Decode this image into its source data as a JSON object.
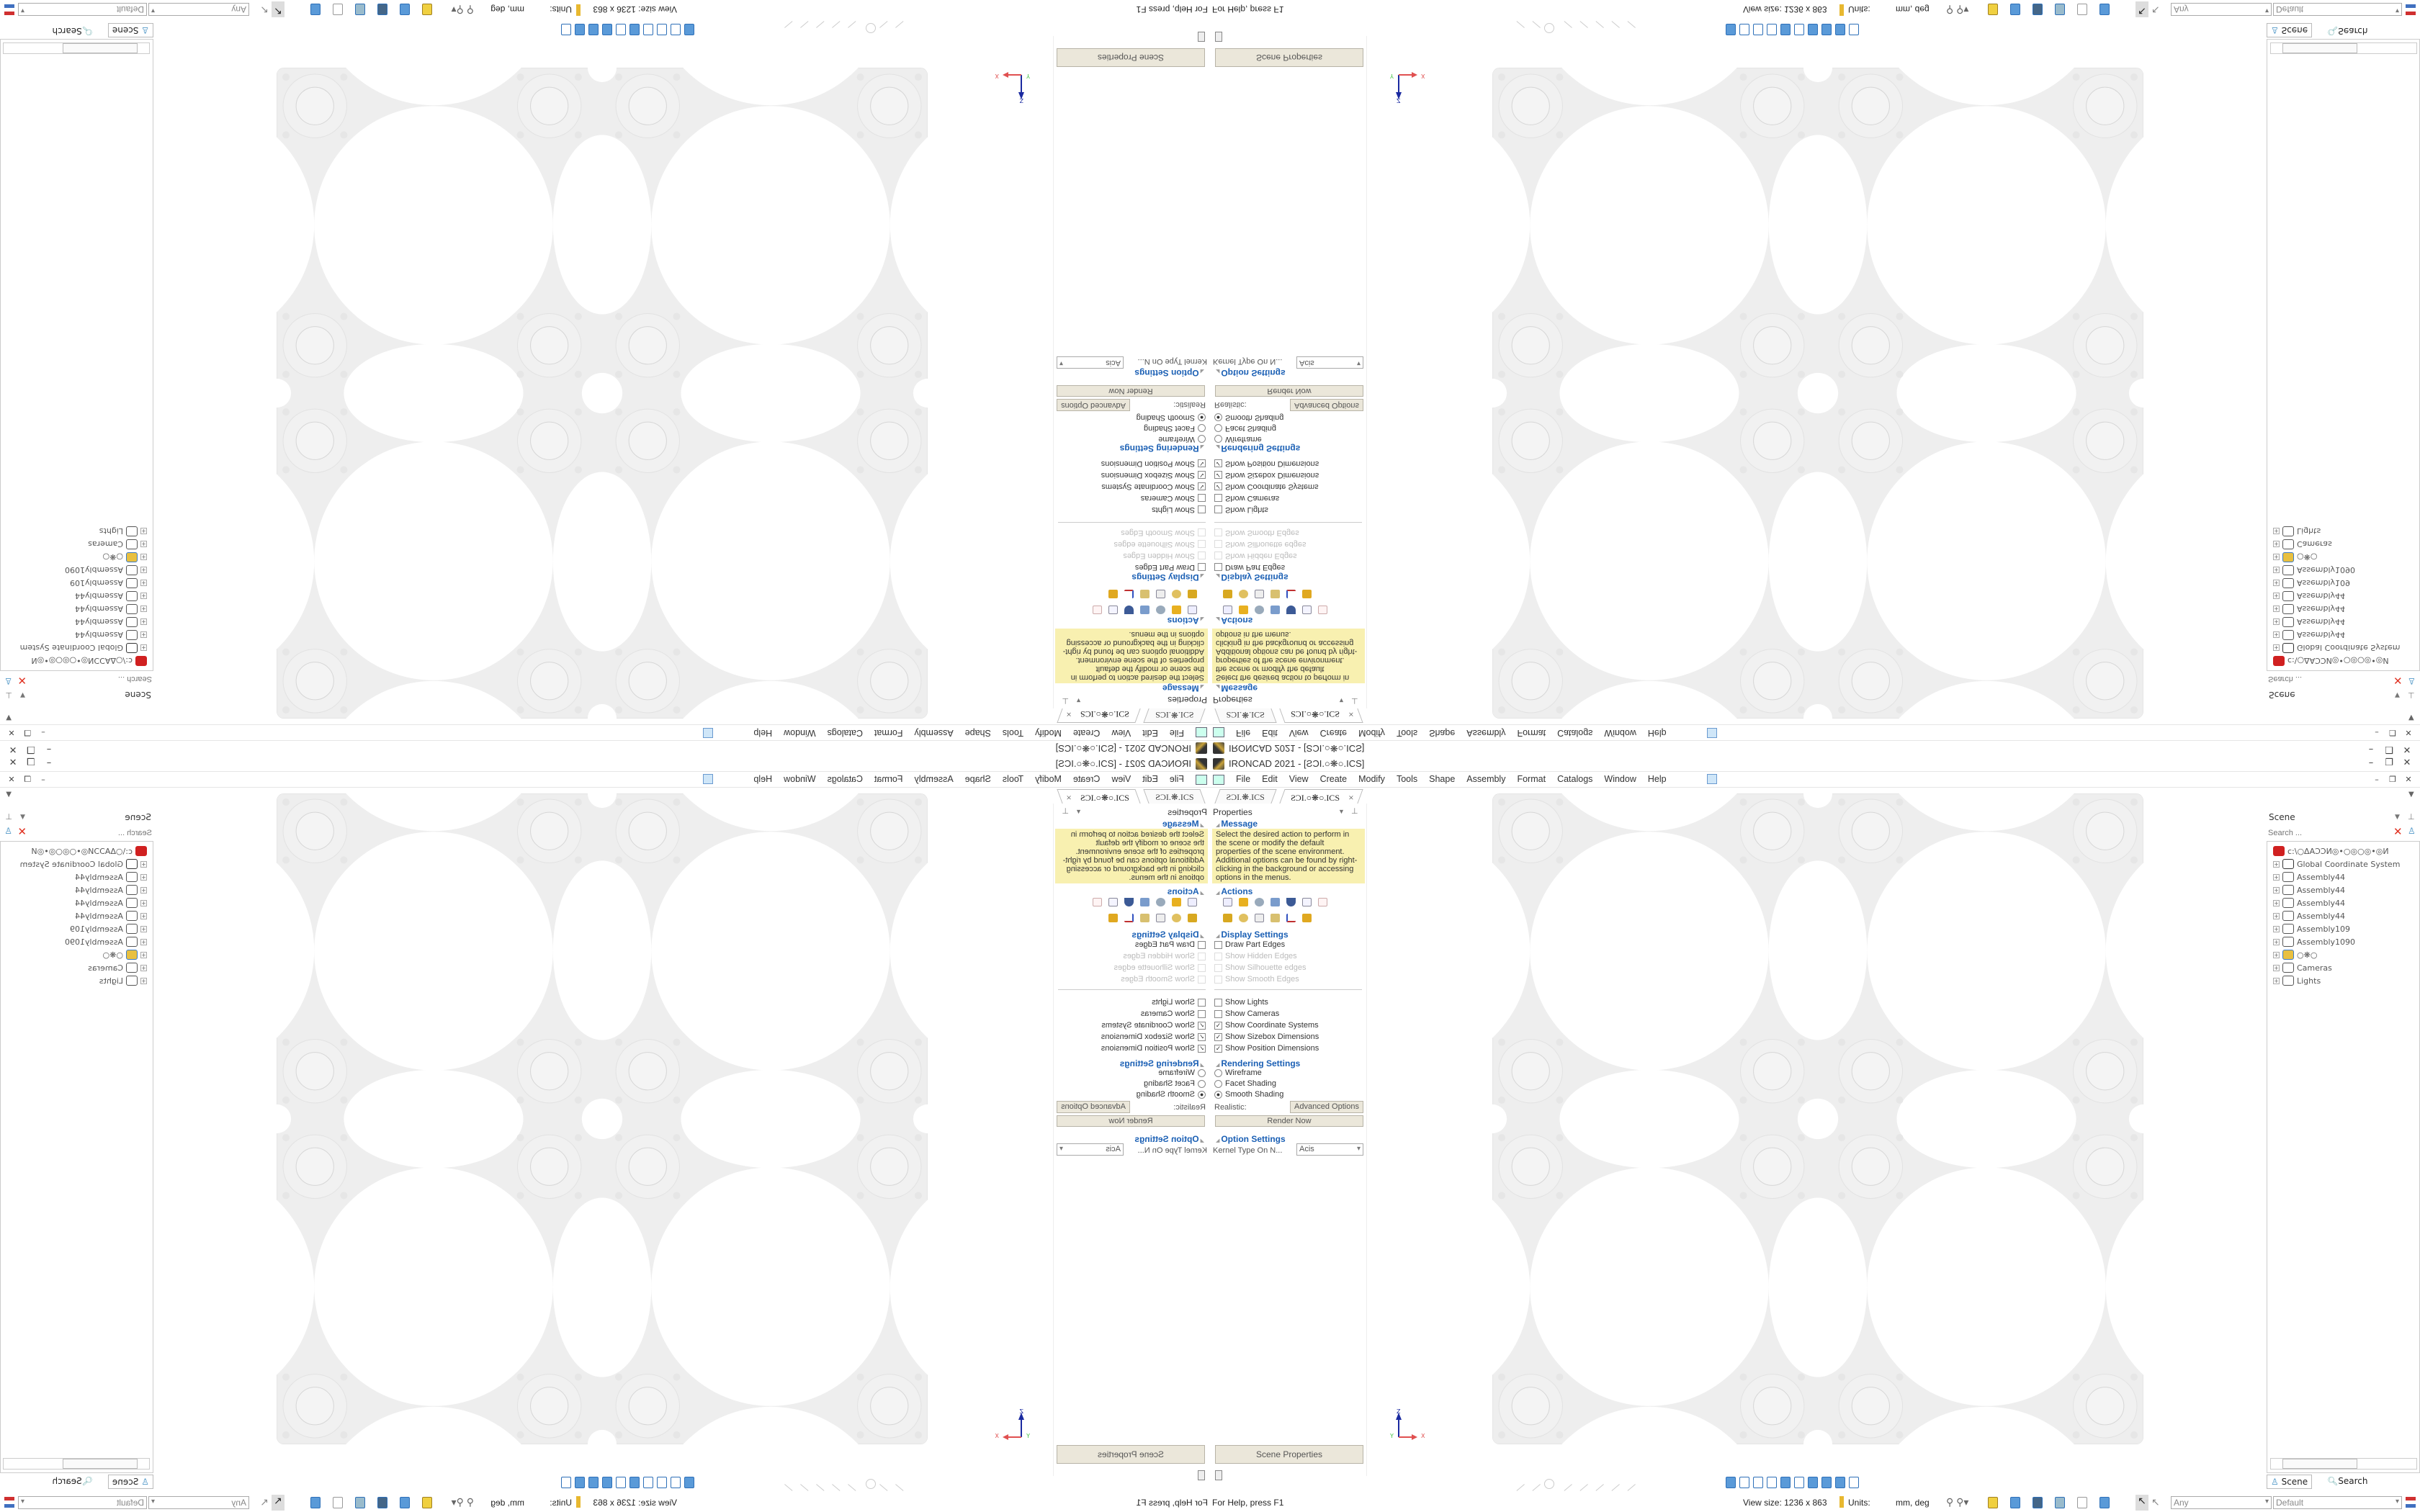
{
  "window": {
    "title": "IRONCAD 2021 - [ƧƆI.○❋○.ICS]",
    "minimize": "–",
    "restore": "❐",
    "close": "✕"
  },
  "menu": [
    "File",
    "Edit",
    "View",
    "Create",
    "Modify",
    "Tools",
    "Shape",
    "Assembly",
    "Format",
    "Catalogs",
    "Window",
    "Help"
  ],
  "tabs": [
    {
      "label": "ƧƆI.❋.ICS",
      "active": false
    },
    {
      "label": "ƧƆI.○❋○.ICS",
      "active": true,
      "close": "×"
    }
  ],
  "properties": {
    "header": "Properties",
    "message_title": "Message",
    "message": "Select the desired action to perform in the scene or modify the default properties of the scene environment. Additional options can be found by right-clicking in the background or accessing options in the menus.",
    "actions_title": "Actions",
    "action_icons": [
      "list-icon",
      "extrude-icon",
      "spin-icon",
      "sweep-icon",
      "shield-icon",
      "sketch-icon",
      "chart-icon",
      "camera-icon",
      "gear-icon",
      "calendar-icon",
      "blocks-icon",
      "axis-icon",
      "layers-icon"
    ],
    "display_title": "Display Settings",
    "display": [
      {
        "label": "Draw Part Edges",
        "checked": false,
        "enabled": true
      },
      {
        "label": "Show Hidden Edges",
        "checked": false,
        "enabled": false
      },
      {
        "label": "Show Silhouette edges",
        "checked": false,
        "enabled": false
      },
      {
        "label": "Show Smooth Edges",
        "checked": false,
        "enabled": false
      }
    ],
    "show": [
      {
        "label": "Show Lights",
        "checked": false
      },
      {
        "label": "Show Cameras",
        "checked": false
      },
      {
        "label": "Show Coordinate Systems",
        "checked": true
      },
      {
        "label": "Show Sizebox Dimensions",
        "checked": true
      },
      {
        "label": "Show Position Dimensions",
        "checked": true
      }
    ],
    "rendering_title": "Rendering Settings",
    "rendering": [
      {
        "label": "Wireframe",
        "selected": false
      },
      {
        "label": "Facet Shading",
        "selected": false
      },
      {
        "label": "Smooth Shading",
        "selected": true
      }
    ],
    "realistic_label": "Realistic:",
    "advanced_button": "Advanced Options",
    "render_button": "Render Now",
    "option_title": "Option Settings",
    "kernel_label": "Kernel Type On N...",
    "kernel_value": "Acis",
    "scene_properties_button": "Scene Properties"
  },
  "scene": {
    "header": "Scene",
    "search_placeholder": "Search ...",
    "tree": [
      {
        "label": "c:\\○ΔΑƆƆИ◎•○◎○◎•◎И",
        "icon": "scene-root-icon",
        "root": true
      },
      {
        "label": "Global Coordinate System",
        "icon": "coordinate-system-icon"
      },
      {
        "label": "Assembly44",
        "icon": "assembly-icon"
      },
      {
        "label": "Assembly44",
        "icon": "assembly-icon"
      },
      {
        "label": "Assembly44",
        "icon": "assembly-icon"
      },
      {
        "label": "Assembly44",
        "icon": "assembly-icon"
      },
      {
        "label": "Assembly109",
        "icon": "assembly-icon"
      },
      {
        "label": "Assembly1090",
        "icon": "assembly-icon"
      },
      {
        "label": "○❋○",
        "icon": "part-icon"
      },
      {
        "label": "Cameras",
        "icon": "camera-icon"
      },
      {
        "label": "Lights",
        "icon": "light-icon"
      }
    ],
    "tab_scene": "Scene",
    "tab_search": "Search"
  },
  "axis": {
    "z": "Z",
    "x": "X",
    "y": "Y"
  },
  "status": {
    "help": "For Help, press F1",
    "view_size": "View size: 1236 x 863",
    "units_label": "Units:",
    "units_value": "mm, deg",
    "filter": "Any",
    "style": "Default"
  },
  "colors": {
    "accent": "#1a5fb4",
    "message_bg": "#f8f0b0",
    "model": "#efefef",
    "cube": "#5a9ad8"
  }
}
